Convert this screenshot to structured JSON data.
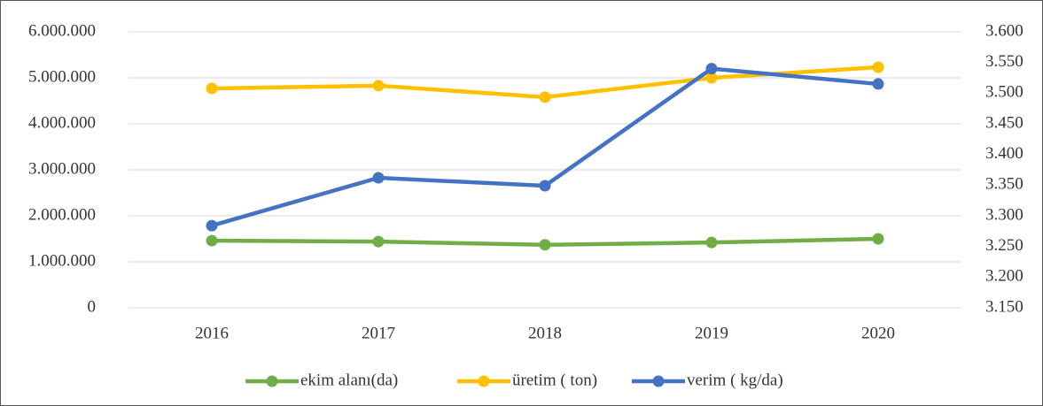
{
  "chart_data": {
    "type": "line",
    "categories": [
      "2016",
      "2017",
      "2018",
      "2019",
      "2020"
    ],
    "series": [
      {
        "name": "ekim alanı(da)",
        "color": "#70ad47",
        "values": [
          1460000,
          1440000,
          1370000,
          1420000,
          1500000
        ]
      },
      {
        "name": "üretim ( ton)",
        "color": "#ffc000",
        "values": [
          4770000,
          4830000,
          4580000,
          5000000,
          5230000
        ]
      },
      {
        "name": "verim ( kg/da)",
        "color": "#4472c4",
        "axis": "y2",
        "values": [
          3284,
          3362,
          3349,
          3540,
          3515
        ]
      }
    ],
    "ylim": [
      0,
      6000000
    ],
    "yticks": [
      0,
      {
        "value": 1000000,
        "label": "1.000.000"
      },
      {
        "value": 2000000,
        "label": "2.000.000"
      },
      {
        "value": 3000000,
        "label": "3.000.000"
      },
      {
        "value": 4000000,
        "label": "4.000.000"
      },
      {
        "value": 5000000,
        "label": "5.000.000"
      },
      {
        "value": 6000000,
        "label": "6.000.000"
      }
    ],
    "y2lim": [
      3150,
      3600
    ],
    "y2ticks": [
      {
        "value": 3150,
        "label": "3.150"
      },
      {
        "value": 3200,
        "label": "3.200"
      },
      {
        "value": 3250,
        "label": "3.250"
      },
      {
        "value": 3300,
        "label": "3.300"
      },
      {
        "value": 3350,
        "label": "3.350"
      },
      {
        "value": 3400,
        "label": "3.400"
      },
      {
        "value": 3450,
        "label": "3.450"
      },
      {
        "value": 3500,
        "label": "3.500"
      },
      {
        "value": 3550,
        "label": "3.550"
      },
      {
        "value": 3600,
        "label": "3.600"
      }
    ],
    "grid": true,
    "legend": "bottom"
  }
}
